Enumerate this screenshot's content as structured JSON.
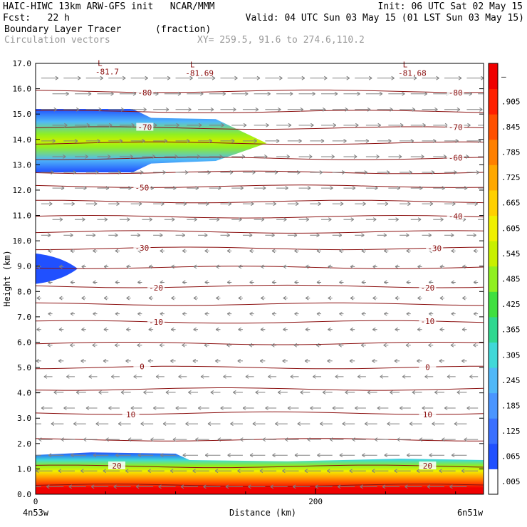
{
  "header": {
    "line1_left": "HAIC-HIWC 13km ARW-GFS init   NCAR/MMM",
    "line1_right": "Init: 06 UTC Sat 02 May 15",
    "line2_left": "Fcst:   22 h",
    "line2_right": "Valid: 04 UTC Sun 03 May 15 (01 LST Sun 03 May 15)",
    "line3_left": "Boundary Layer Tracer",
    "line3_mid": "(fraction)",
    "line4_left": "Circulation vectors",
    "line4_mid": "XY= 259.5, 91.6 to 274.6,110.2"
  },
  "chart_data": {
    "type": "heatmap",
    "xlabel": "Distance (km)",
    "ylabel": "Height (km)",
    "xlim": [
      0,
      320
    ],
    "ylim": [
      0,
      17
    ],
    "x_ticks": [
      {
        "value": 0,
        "label": "0"
      },
      {
        "value": 200,
        "label": "200"
      }
    ],
    "x_end_labels": {
      "left": "4n53w",
      "right": "6n51w"
    },
    "y_ticks": [
      {
        "value": 0,
        "label": "0.0"
      },
      {
        "value": 1,
        "label": "1.0"
      },
      {
        "value": 2,
        "label": "2.0"
      },
      {
        "value": 3,
        "label": "3.0"
      },
      {
        "value": 4,
        "label": "4.0"
      },
      {
        "value": 5,
        "label": "5.0"
      },
      {
        "value": 6,
        "label": "6.0"
      },
      {
        "value": 7,
        "label": "7.0"
      },
      {
        "value": 8,
        "label": "8.0"
      },
      {
        "value": 9,
        "label": "9.0"
      },
      {
        "value": 10,
        "label": "10.0"
      },
      {
        "value": 11,
        "label": "11.0"
      },
      {
        "value": 12,
        "label": "12.0"
      },
      {
        "value": 13,
        "label": "13.0"
      },
      {
        "value": 14,
        "label": "14.0"
      },
      {
        "value": 15,
        "label": "15.0"
      },
      {
        "value": 16,
        "label": "16.0"
      },
      {
        "value": 17,
        "label": "17.0"
      }
    ],
    "colorbar": {
      "labels": [
        ".005",
        ".065",
        ".125",
        ".185",
        ".245",
        ".305",
        ".365",
        ".425",
        ".485",
        ".545",
        ".605",
        ".665",
        ".725",
        ".785",
        ".845",
        ".905",
        "–"
      ],
      "colors": [
        "#ffffff",
        "#2050ff",
        "#3a70ff",
        "#4a95ff",
        "#50b8f8",
        "#40d8d8",
        "#30d890",
        "#40e040",
        "#90f020",
        "#c8f000",
        "#f0f000",
        "#ffd000",
        "#ffa800",
        "#ff8000",
        "#ff5000",
        "#ff2000",
        "#f00000"
      ]
    },
    "temperature_contours": [
      {
        "height": 0.35,
        "label": "20",
        "label_x": [],
        "color": "#8b1010"
      },
      {
        "height": 1.1,
        "label": "20",
        "label_x": [
          58,
          280
        ],
        "color": "#8b1010"
      },
      {
        "height": 2.15,
        "label": "",
        "label_x": [],
        "color": "#8b1010"
      },
      {
        "height": 3.2,
        "label": "10",
        "label_x": [
          68,
          280
        ],
        "color": "#8b1010"
      },
      {
        "height": 4.15,
        "label": "",
        "label_x": [],
        "color": "#8b1010"
      },
      {
        "height": 5.0,
        "label": "0",
        "label_x": [
          76,
          280
        ],
        "color": "#8b1010"
      },
      {
        "height": 5.95,
        "label": "",
        "label_x": [],
        "color": "#8b1010"
      },
      {
        "height": 6.8,
        "label": "-10",
        "label_x": [
          86,
          280
        ],
        "color": "#8b1010"
      },
      {
        "height": 7.5,
        "label": "",
        "label_x": [],
        "color": "#8b1010"
      },
      {
        "height": 8.2,
        "label": "-20",
        "label_x": [
          86,
          280
        ],
        "color": "#8b1010"
      },
      {
        "height": 8.95,
        "label": "",
        "label_x": [],
        "color": "#8b1010"
      },
      {
        "height": 9.7,
        "label": "-30",
        "label_x": [
          76,
          285
        ],
        "color": "#8b1010"
      },
      {
        "height": 10.35,
        "label": "",
        "label_x": [],
        "color": "#8b1010"
      },
      {
        "height": 10.95,
        "label": "-40",
        "label_x": [
          300
        ],
        "color": "#8b1010"
      },
      {
        "height": 11.55,
        "label": "",
        "label_x": [],
        "color": "#8b1010"
      },
      {
        "height": 12.15,
        "label": "-50",
        "label_x": [
          76
        ],
        "color": "#8b1010"
      },
      {
        "height": 12.7,
        "label": "",
        "label_x": [],
        "color": "#8b1010"
      },
      {
        "height": 13.25,
        "label": "-60",
        "label_x": [
          300
        ],
        "color": "#8b1010"
      },
      {
        "height": 13.85,
        "label": "",
        "label_x": [],
        "color": "#8b1010"
      },
      {
        "height": 14.45,
        "label": "-70",
        "label_x": [
          78,
          300
        ],
        "color": "#8b1010"
      },
      {
        "height": 15.1,
        "label": "",
        "label_x": [],
        "color": "#8b1010"
      },
      {
        "height": 15.9,
        "label": "-80",
        "label_x": [
          78,
          300
        ],
        "color": "#8b1010"
      }
    ],
    "low_labels": [
      {
        "x": 46,
        "height": 16.9,
        "marker": "L",
        "value": "-81.7"
      },
      {
        "x": 112,
        "height": 16.85,
        "marker": "L",
        "value": "-81.69"
      },
      {
        "x": 264,
        "height": 16.85,
        "marker": "L",
        "value": "-81.68"
      }
    ],
    "tracer_upper": {
      "x_end": 165,
      "y_bottom": 12.7,
      "y_top": 15.2,
      "peak_height": 13.85
    },
    "tracer_mid": {
      "x_end": 30,
      "y_bottom": 8.3,
      "y_top": 9.5,
      "peak_height": 8.9
    },
    "tracer_low": {
      "top_profile": [
        {
          "x": 0,
          "top": 1.55
        },
        {
          "x": 40,
          "top": 1.65
        },
        {
          "x": 100,
          "top": 1.6
        },
        {
          "x": 110,
          "top": 1.35
        },
        {
          "x": 180,
          "top": 1.3
        },
        {
          "x": 260,
          "top": 1.4
        },
        {
          "x": 320,
          "top": 1.35
        }
      ]
    },
    "vectors": {
      "grid_x_spacing_km": 16,
      "grid_y_spacing_km": 0.62,
      "color": "#808080"
    }
  }
}
